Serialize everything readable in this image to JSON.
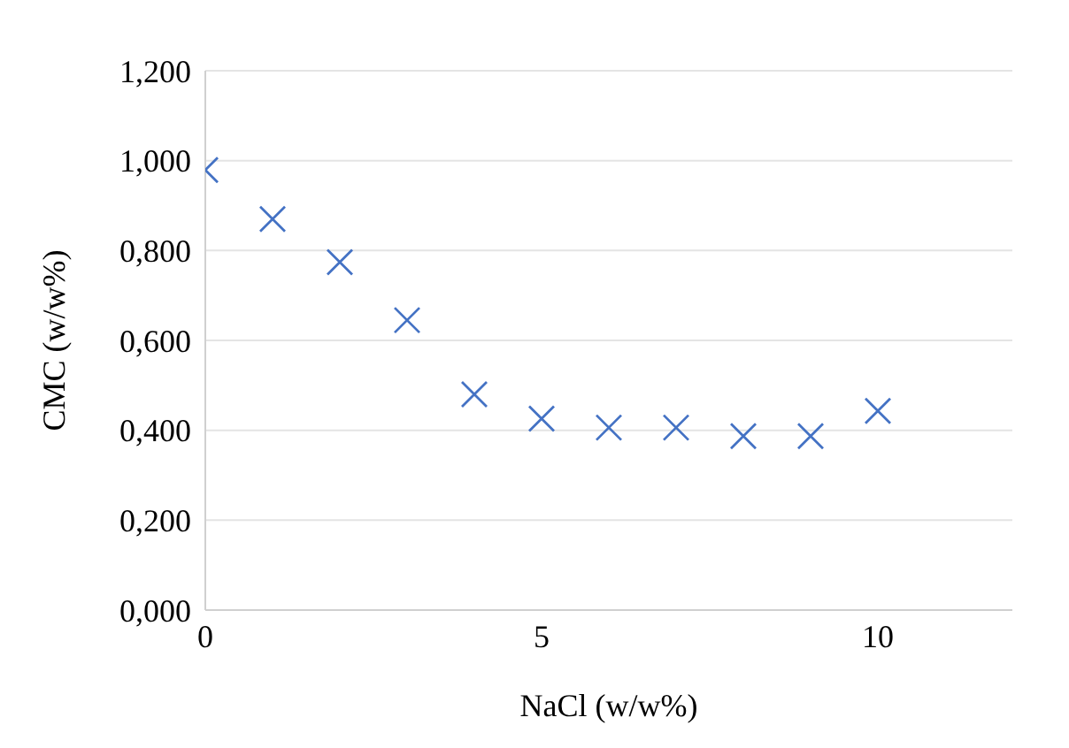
{
  "chart_data": {
    "type": "scatter",
    "xlabel": "NaCl (w/w%)",
    "ylabel": "CMC (w/w%)",
    "x": [
      0,
      1,
      2,
      3,
      4,
      5,
      6,
      7,
      8,
      9,
      10
    ],
    "series": [
      {
        "color": "#4472c4",
        "values": [
          0.979,
          0.87,
          0.774,
          0.645,
          0.48,
          0.426,
          0.406,
          0.406,
          0.387,
          0.387,
          0.443
        ]
      }
    ],
    "xlim": [
      0,
      12
    ],
    "xticks": [
      0,
      5,
      10
    ],
    "ylim": [
      0,
      1.2
    ],
    "yticks": [
      {
        "value": 0,
        "label": "0,000"
      },
      {
        "value": 0.2,
        "label": "0,200"
      },
      {
        "value": 0.4,
        "label": "0,400"
      },
      {
        "value": 0.6,
        "label": "0,600"
      },
      {
        "value": 0.8,
        "label": "0,800"
      },
      {
        "value": 1,
        "label": "1,000"
      },
      {
        "value": 1.2,
        "label": "1,200"
      }
    ],
    "grid": "y",
    "legend": false,
    "marker": "cross"
  }
}
